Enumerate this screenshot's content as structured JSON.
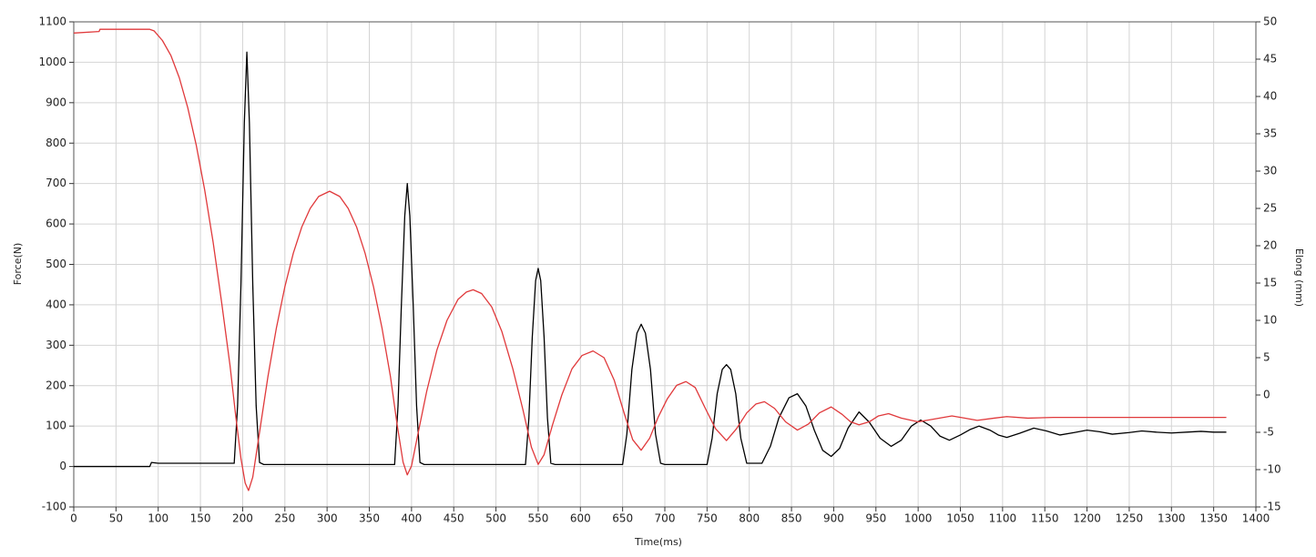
{
  "chart_data": {
    "type": "line",
    "x_label": "Time(ms)",
    "y_label": "Force(N)",
    "y2_label": "Elong (mm)",
    "xlim": [
      0,
      1400
    ],
    "xticks": [
      0,
      50,
      100,
      150,
      200,
      250,
      300,
      350,
      400,
      450,
      500,
      550,
      600,
      650,
      700,
      750,
      800,
      850,
      900,
      950,
      1000,
      1050,
      1100,
      1150,
      1200,
      1250,
      1300,
      1350,
      1400
    ],
    "ylim": [
      -100,
      1100
    ],
    "yticks": [
      -100,
      0,
      100,
      200,
      300,
      400,
      500,
      600,
      700,
      800,
      900,
      1000,
      1100
    ],
    "y2lim": [
      -15,
      50
    ],
    "y2ticks": [
      -15,
      -10,
      -5,
      0,
      5,
      10,
      15,
      20,
      25,
      30,
      35,
      40,
      45,
      50
    ],
    "grid": true,
    "series": [
      {
        "color": "#000000",
        "x": [
          0,
          60,
          90,
          92,
          100,
          190,
          194,
          198,
          202,
          205,
          208,
          212,
          216,
          220,
          225,
          380,
          384,
          388,
          392,
          395,
          398,
          402,
          406,
          410,
          415,
          535,
          539,
          543,
          547,
          550,
          553,
          557,
          561,
          565,
          570,
          650,
          655,
          661,
          667,
          672,
          677,
          683,
          689,
          695,
          700,
          750,
          756,
          762,
          768,
          773,
          778,
          784,
          790,
          797,
          815,
          825,
          835,
          847,
          857,
          867,
          877,
          887,
          897,
          907,
          917,
          930,
          942,
          955,
          968,
          980,
          992,
          1003,
          1015,
          1026,
          1037,
          1050,
          1062,
          1072,
          1085,
          1095,
          1105,
          1120,
          1137,
          1152,
          1168,
          1185,
          1200,
          1215,
          1230,
          1250,
          1265,
          1282,
          1300,
          1318,
          1335,
          1350,
          1365
        ],
        "values": [
          0,
          0,
          0,
          10,
          8,
          8,
          150,
          450,
          850,
          1025,
          850,
          450,
          150,
          10,
          5,
          5,
          150,
          400,
          620,
          700,
          620,
          400,
          150,
          10,
          5,
          5,
          120,
          320,
          460,
          490,
          460,
          320,
          120,
          8,
          5,
          5,
          80,
          240,
          330,
          352,
          330,
          240,
          80,
          8,
          5,
          5,
          70,
          180,
          240,
          252,
          240,
          180,
          70,
          8,
          8,
          50,
          120,
          170,
          180,
          150,
          90,
          40,
          25,
          45,
          95,
          135,
          110,
          70,
          50,
          65,
          100,
          115,
          100,
          75,
          65,
          78,
          92,
          100,
          90,
          78,
          72,
          82,
          95,
          88,
          78,
          84,
          90,
          86,
          80,
          84,
          88,
          85,
          83,
          85,
          87,
          85,
          85
        ]
      },
      {
        "color": "#e0393b",
        "axis": "y2",
        "x": [
          0,
          30,
          31,
          90,
          95,
          105,
          115,
          125,
          135,
          145,
          155,
          165,
          175,
          185,
          192,
          198,
          203,
          207,
          212,
          220,
          230,
          240,
          250,
          260,
          270,
          280,
          290,
          303,
          315,
          325,
          335,
          345,
          355,
          365,
          375,
          383,
          390,
          395,
          400,
          408,
          418,
          430,
          442,
          455,
          465,
          473,
          483,
          495,
          507,
          520,
          532,
          542,
          550,
          557,
          567,
          578,
          590,
          602,
          615,
          628,
          640,
          652,
          662,
          672,
          682,
          692,
          703,
          714,
          725,
          736,
          748,
          760,
          773,
          785,
          797,
          808,
          818,
          830,
          843,
          857,
          870,
          883,
          897,
          910,
          920,
          930,
          942,
          953,
          965,
          980,
          1000,
          1020,
          1040,
          1055,
          1070,
          1090,
          1105,
          1130,
          1160,
          1200,
          1250,
          1300,
          1365
        ],
        "values": [
          48.5,
          48.7,
          49,
          49,
          48.8,
          47.5,
          45.5,
          42.5,
          38.5,
          33.5,
          27.5,
          20.5,
          12.5,
          4,
          -3,
          -8.5,
          -11.8,
          -12.8,
          -11,
          -5,
          2.5,
          9,
          14.5,
          19,
          22.5,
          25,
          26.6,
          27.3,
          26.6,
          25,
          22.5,
          19,
          14.5,
          9,
          2.5,
          -4,
          -9,
          -10.7,
          -9.5,
          -5,
          0.5,
          6,
          10,
          12.8,
          13.8,
          14.1,
          13.6,
          11.8,
          8.5,
          3.5,
          -2,
          -7,
          -9.3,
          -8,
          -4,
          0,
          3.5,
          5.3,
          5.9,
          5,
          2,
          -2.5,
          -6,
          -7.4,
          -5.8,
          -3,
          -0.5,
          1.3,
          1.8,
          1,
          -1.8,
          -4.5,
          -6.1,
          -4.5,
          -2.4,
          -1.2,
          -0.9,
          -1.8,
          -3.6,
          -4.7,
          -3.9,
          -2.4,
          -1.6,
          -2.6,
          -3.6,
          -4,
          -3.6,
          -2.8,
          -2.5,
          -3.1,
          -3.6,
          -3.2,
          -2.8,
          -3.1,
          -3.4,
          -3.1,
          -2.9,
          -3.1,
          -3,
          -3,
          -3,
          -3,
          -3
        ]
      }
    ]
  }
}
